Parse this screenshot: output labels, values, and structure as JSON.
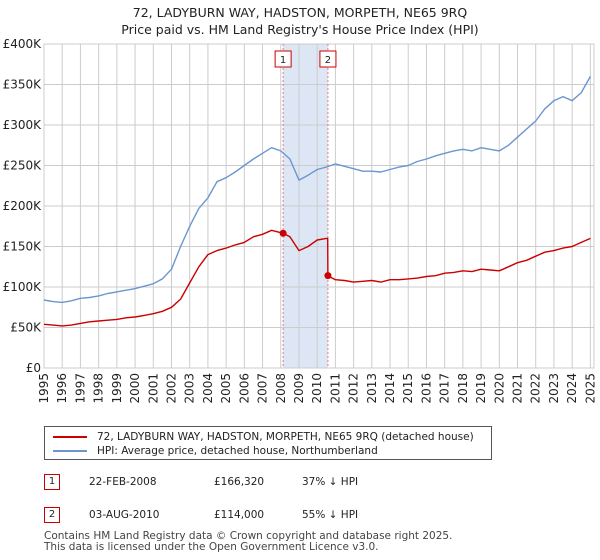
{
  "title_line1": "72, LADYBURN WAY, HADSTON, MORPETH, NE65 9RQ",
  "title_line2": "Price paid vs. HM Land Registry's House Price Index (HPI)",
  "colors": {
    "price": "#cc0000",
    "hpi": "#6b96cf",
    "shade": "#dde6f5",
    "grid": "#cccccc",
    "marker_line": "#e08080"
  },
  "chart_data": {
    "type": "line",
    "title": "72, LADYBURN WAY, HADSTON, MORPETH, NE65 9RQ — Price paid vs. HM Land Registry's House Price Index (HPI)",
    "xlabel": "",
    "ylabel": "",
    "xlim": [
      1995,
      2025.2
    ],
    "ylim": [
      0,
      400000
    ],
    "grid": true,
    "legend_position": "below",
    "y_ticks": [
      {
        "value": 0,
        "label": "£0"
      },
      {
        "value": 50000,
        "label": "£50K"
      },
      {
        "value": 100000,
        "label": "£100K"
      },
      {
        "value": 150000,
        "label": "£150K"
      },
      {
        "value": 200000,
        "label": "£200K"
      },
      {
        "value": 250000,
        "label": "£250K"
      },
      {
        "value": 300000,
        "label": "£300K"
      },
      {
        "value": 350000,
        "label": "£350K"
      },
      {
        "value": 400000,
        "label": "£400K"
      }
    ],
    "x_ticks": [
      "1995",
      "1996",
      "1997",
      "1998",
      "1999",
      "2000",
      "2001",
      "2002",
      "2003",
      "2004",
      "2005",
      "2006",
      "2007",
      "2008",
      "2009",
      "2010",
      "2011",
      "2012",
      "2013",
      "2014",
      "2015",
      "2016",
      "2017",
      "2018",
      "2019",
      "2020",
      "2021",
      "2022",
      "2023",
      "2024",
      "2025"
    ],
    "shaded_range": [
      2008.13,
      2010.59
    ],
    "markers": [
      {
        "label": "1",
        "x": 2008.13,
        "y": 166320
      },
      {
        "label": "2",
        "x": 2010.59,
        "y": 114000
      }
    ],
    "series": [
      {
        "name": "72, LADYBURN WAY, HADSTON, MORPETH, NE65 9RQ (detached house)",
        "x": [
          1995.0,
          1995.5,
          1996.0,
          1996.5,
          1997.0,
          1997.5,
          1998.0,
          1998.5,
          1999.0,
          1999.5,
          2000.0,
          2000.5,
          2001.0,
          2001.5,
          2002.0,
          2002.5,
          2003.0,
          2003.5,
          2004.0,
          2004.5,
          2005.0,
          2005.5,
          2006.0,
          2006.5,
          2007.0,
          2007.5,
          2008.0,
          2008.13,
          2008.5,
          2009.0,
          2009.5,
          2010.0,
          2010.5,
          2010.58,
          2010.59,
          2011.0,
          2011.5,
          2012.0,
          2012.5,
          2013.0,
          2013.5,
          2014.0,
          2014.5,
          2015.0,
          2015.5,
          2016.0,
          2016.5,
          2017.0,
          2017.5,
          2018.0,
          2018.5,
          2019.0,
          2019.5,
          2020.0,
          2020.5,
          2021.0,
          2021.5,
          2022.0,
          2022.5,
          2023.0,
          2023.5,
          2024.0,
          2024.5,
          2025.0
        ],
        "values": [
          54000,
          53000,
          52000,
          53000,
          55000,
          57000,
          58000,
          59000,
          60000,
          62000,
          63000,
          65000,
          67000,
          70000,
          75000,
          85000,
          105000,
          125000,
          140000,
          145000,
          148000,
          152000,
          155000,
          162000,
          165000,
          170000,
          167000,
          166320,
          162000,
          145000,
          150000,
          158000,
          160000,
          160000,
          114000,
          109000,
          108000,
          106000,
          107000,
          108000,
          106000,
          109000,
          109000,
          110000,
          111000,
          113000,
          114000,
          117000,
          118000,
          120000,
          119000,
          122000,
          121000,
          120000,
          125000,
          130000,
          133000,
          138000,
          143000,
          145000,
          148000,
          150000,
          155000,
          160000
        ]
      },
      {
        "name": "HPI: Average price, detached house, Northumberland",
        "x": [
          1995.0,
          1995.5,
          1996.0,
          1996.5,
          1997.0,
          1997.5,
          1998.0,
          1998.5,
          1999.0,
          1999.5,
          2000.0,
          2000.5,
          2001.0,
          2001.5,
          2002.0,
          2002.5,
          2003.0,
          2003.5,
          2004.0,
          2004.5,
          2005.0,
          2005.5,
          2006.0,
          2006.5,
          2007.0,
          2007.5,
          2008.0,
          2008.5,
          2009.0,
          2009.5,
          2010.0,
          2010.5,
          2011.0,
          2011.5,
          2012.0,
          2012.5,
          2013.0,
          2013.5,
          2014.0,
          2014.5,
          2015.0,
          2015.5,
          2016.0,
          2016.5,
          2017.0,
          2017.5,
          2018.0,
          2018.5,
          2019.0,
          2019.5,
          2020.0,
          2020.5,
          2021.0,
          2021.5,
          2022.0,
          2022.5,
          2023.0,
          2023.5,
          2024.0,
          2024.5,
          2025.0
        ],
        "values": [
          84000,
          82000,
          81000,
          83000,
          86000,
          87000,
          89000,
          92000,
          94000,
          96000,
          98000,
          101000,
          104000,
          110000,
          122000,
          150000,
          175000,
          197000,
          210000,
          230000,
          235000,
          242000,
          250000,
          258000,
          265000,
          272000,
          268000,
          258000,
          232000,
          238000,
          245000,
          248000,
          252000,
          249000,
          246000,
          243000,
          243000,
          242000,
          245000,
          248000,
          250000,
          255000,
          258000,
          262000,
          265000,
          268000,
          270000,
          268000,
          272000,
          270000,
          268000,
          275000,
          285000,
          295000,
          305000,
          320000,
          330000,
          335000,
          330000,
          340000,
          360000
        ]
      }
    ]
  },
  "legend": {
    "price_label": "72, LADYBURN WAY, HADSTON, MORPETH, NE65 9RQ (detached house)",
    "hpi_label": "HPI: Average price, detached house, Northumberland"
  },
  "transactions": [
    {
      "num": "1",
      "date": "22-FEB-2008",
      "price": "£166,320",
      "hpi": "37% ↓ HPI"
    },
    {
      "num": "2",
      "date": "03-AUG-2010",
      "price": "£114,000",
      "hpi": "55% ↓ HPI"
    }
  ],
  "footer_line1": "Contains HM Land Registry data © Crown copyright and database right 2025.",
  "footer_line2": "This data is licensed under the Open Government Licence v3.0."
}
